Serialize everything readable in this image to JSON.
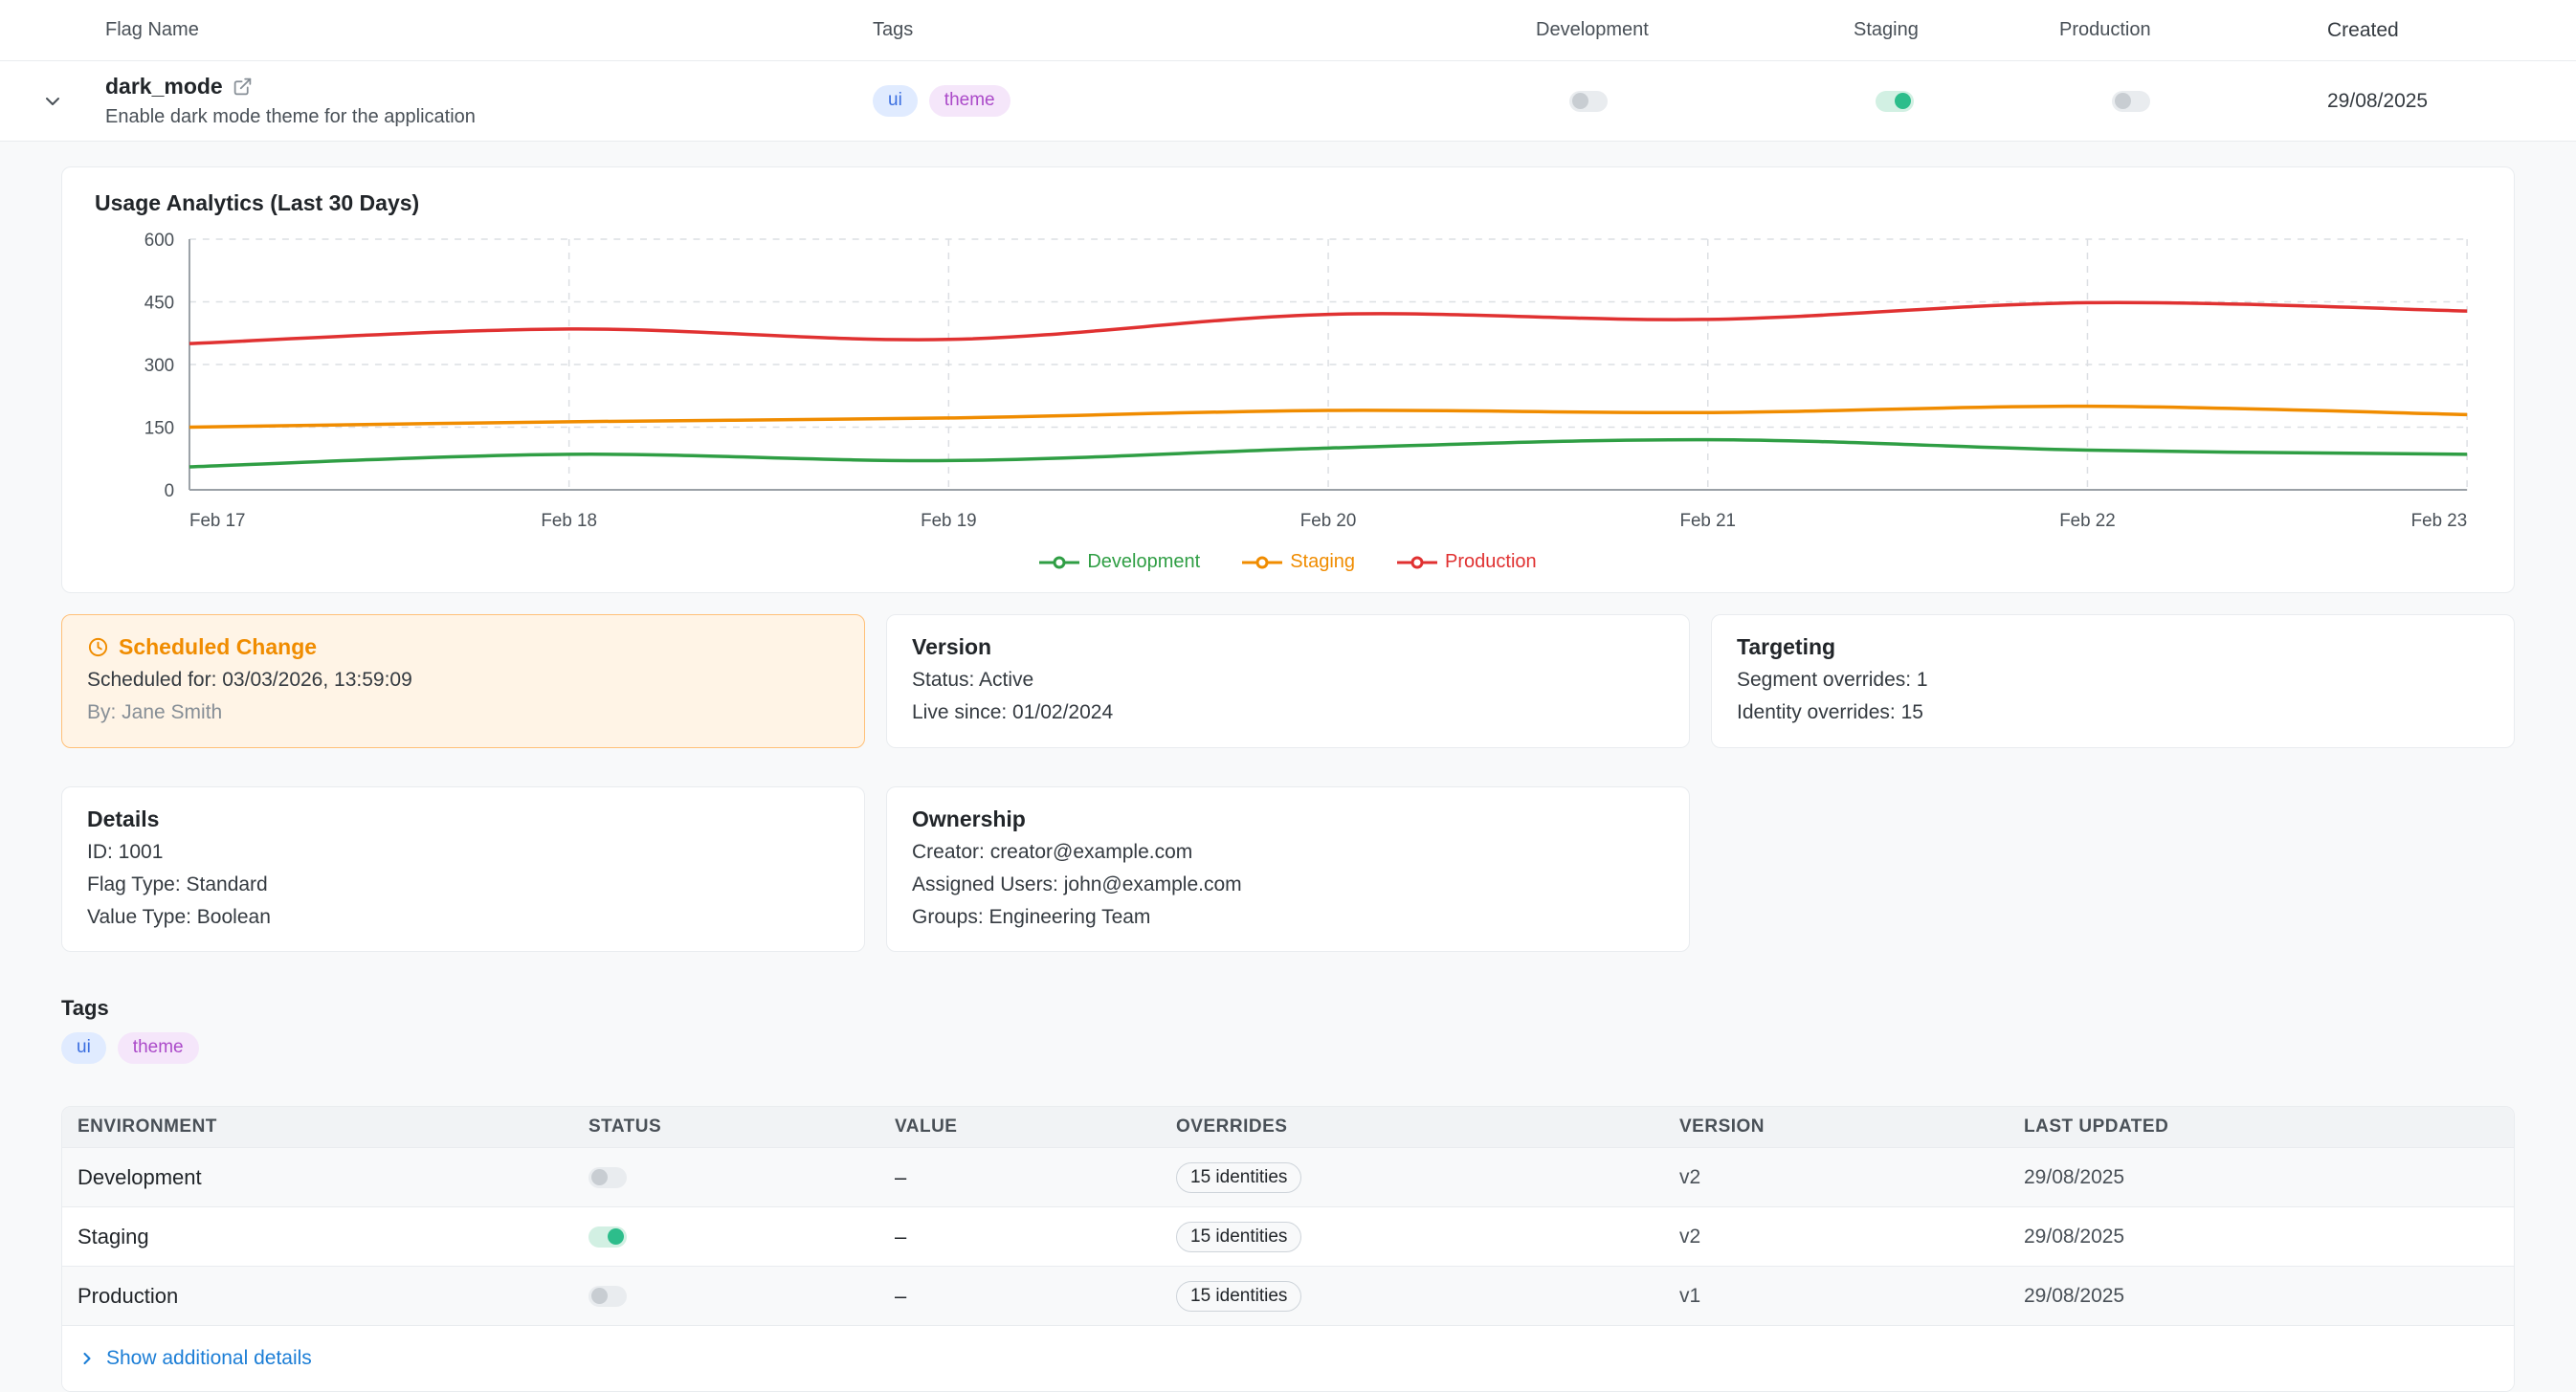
{
  "colors": {
    "toggle_on": "#2dbd8b",
    "link": "#1c7ed6",
    "scheduled_accent": "#f08c00",
    "tag_ui": "#3b6fe0",
    "tag_theme": "#ab4ac9"
  },
  "table_header": {
    "flag_name": "Flag Name",
    "tags": "Tags",
    "development": "Development",
    "staging": "Staging",
    "production": "Production",
    "created": "Created"
  },
  "flag_row": {
    "name": "dark_mode",
    "description": "Enable dark mode theme for the application",
    "tags": [
      "ui",
      "theme"
    ],
    "toggles": {
      "development": false,
      "staging": true,
      "production": false
    },
    "created": "29/08/2025"
  },
  "chart_data": {
    "type": "line",
    "title": "Usage Analytics (Last 30 Days)",
    "x": [
      "Feb 17",
      "Feb 18",
      "Feb 19",
      "Feb 20",
      "Feb 21",
      "Feb 22",
      "Feb 23"
    ],
    "series": [
      {
        "name": "Development",
        "color": "#2f9e44",
        "values": [
          55,
          85,
          70,
          100,
          120,
          95,
          85
        ]
      },
      {
        "name": "Staging",
        "color": "#f08c00",
        "values": [
          150,
          163,
          172,
          190,
          185,
          200,
          180
        ]
      },
      {
        "name": "Production",
        "color": "#e03131",
        "values": [
          350,
          385,
          360,
          420,
          408,
          448,
          428
        ]
      }
    ],
    "ylim": [
      0,
      600
    ],
    "yticks": [
      0,
      150,
      300,
      450,
      600
    ],
    "grid": true,
    "legend_position": "bottom"
  },
  "scheduled_change": {
    "title": "Scheduled Change",
    "scheduled_for": "Scheduled for: 03/03/2026, 13:59:09",
    "by": "By: Jane Smith"
  },
  "version_card": {
    "title": "Version",
    "lines": [
      "Status: Active",
      "Live since: 01/02/2024"
    ]
  },
  "targeting_card": {
    "title": "Targeting",
    "lines": [
      "Segment overrides: 1",
      "Identity overrides: 15"
    ]
  },
  "details_card": {
    "title": "Details",
    "lines": [
      "ID: 1001",
      "Flag Type: Standard",
      "Value Type: Boolean"
    ]
  },
  "ownership_card": {
    "title": "Ownership",
    "lines": [
      "Creator: creator@example.com",
      "Assigned Users: john@example.com",
      "Groups: Engineering Team"
    ]
  },
  "tags_section": {
    "title": "Tags",
    "tags": [
      "ui",
      "theme"
    ]
  },
  "env_table": {
    "headers": [
      "ENVIRONMENT",
      "STATUS",
      "VALUE",
      "OVERRIDES",
      "VERSION",
      "LAST UPDATED"
    ],
    "rows": [
      {
        "environment": "Development",
        "status": false,
        "value": "–",
        "overrides": "15 identities",
        "version": "v2",
        "last_updated": "29/08/2025"
      },
      {
        "environment": "Staging",
        "status": true,
        "value": "–",
        "overrides": "15 identities",
        "version": "v2",
        "last_updated": "29/08/2025"
      },
      {
        "environment": "Production",
        "status": false,
        "value": "–",
        "overrides": "15 identities",
        "version": "v1",
        "last_updated": "29/08/2025"
      }
    ]
  },
  "footer": {
    "show_details": "Show additional details"
  }
}
